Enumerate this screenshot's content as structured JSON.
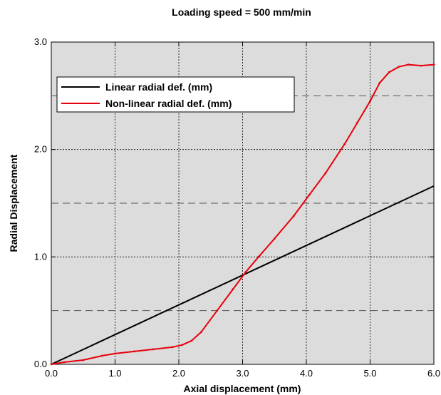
{
  "chart_data": {
    "type": "line",
    "title": "Loading speed = 500 mm/min",
    "xlabel": "Axial displacement (mm)",
    "ylabel": "Radial Displacement",
    "xlim": [
      0,
      6
    ],
    "ylim": [
      0,
      3
    ],
    "xticks": [
      0,
      1,
      2,
      3,
      4,
      5,
      6
    ],
    "yticks": [
      0,
      1,
      2,
      3
    ],
    "xtick_labels": [
      "0.0",
      "1.0",
      "2.0",
      "3.0",
      "4.0",
      "5.0",
      "6.0"
    ],
    "ytick_labels": [
      "0.0",
      "1.0",
      "2.0",
      "3.0"
    ],
    "grid": "on",
    "background_color": "#dcdcdc",
    "legend_position": "top-left",
    "series": [
      {
        "name": "Linear radial def. (mm)",
        "color": "#000000",
        "x": [
          0,
          6
        ],
        "y": [
          0,
          1.66
        ]
      },
      {
        "name": "Non-linear radial def. (mm)",
        "color": "#e8000b",
        "x": [
          0,
          0.2,
          0.5,
          0.8,
          1.0,
          1.3,
          1.6,
          1.9,
          2.05,
          2.2,
          2.35,
          2.6,
          2.85,
          3.05,
          3.25,
          3.5,
          3.8,
          4.05,
          4.3,
          4.6,
          4.8,
          5.0,
          5.15,
          5.3,
          5.45,
          5.6,
          5.8,
          6.0
        ],
        "y": [
          0,
          0.02,
          0.04,
          0.08,
          0.1,
          0.12,
          0.14,
          0.16,
          0.18,
          0.22,
          0.3,
          0.5,
          0.7,
          0.86,
          1.0,
          1.17,
          1.38,
          1.58,
          1.78,
          2.05,
          2.25,
          2.45,
          2.62,
          2.72,
          2.77,
          2.79,
          2.78,
          2.79
        ]
      }
    ]
  }
}
